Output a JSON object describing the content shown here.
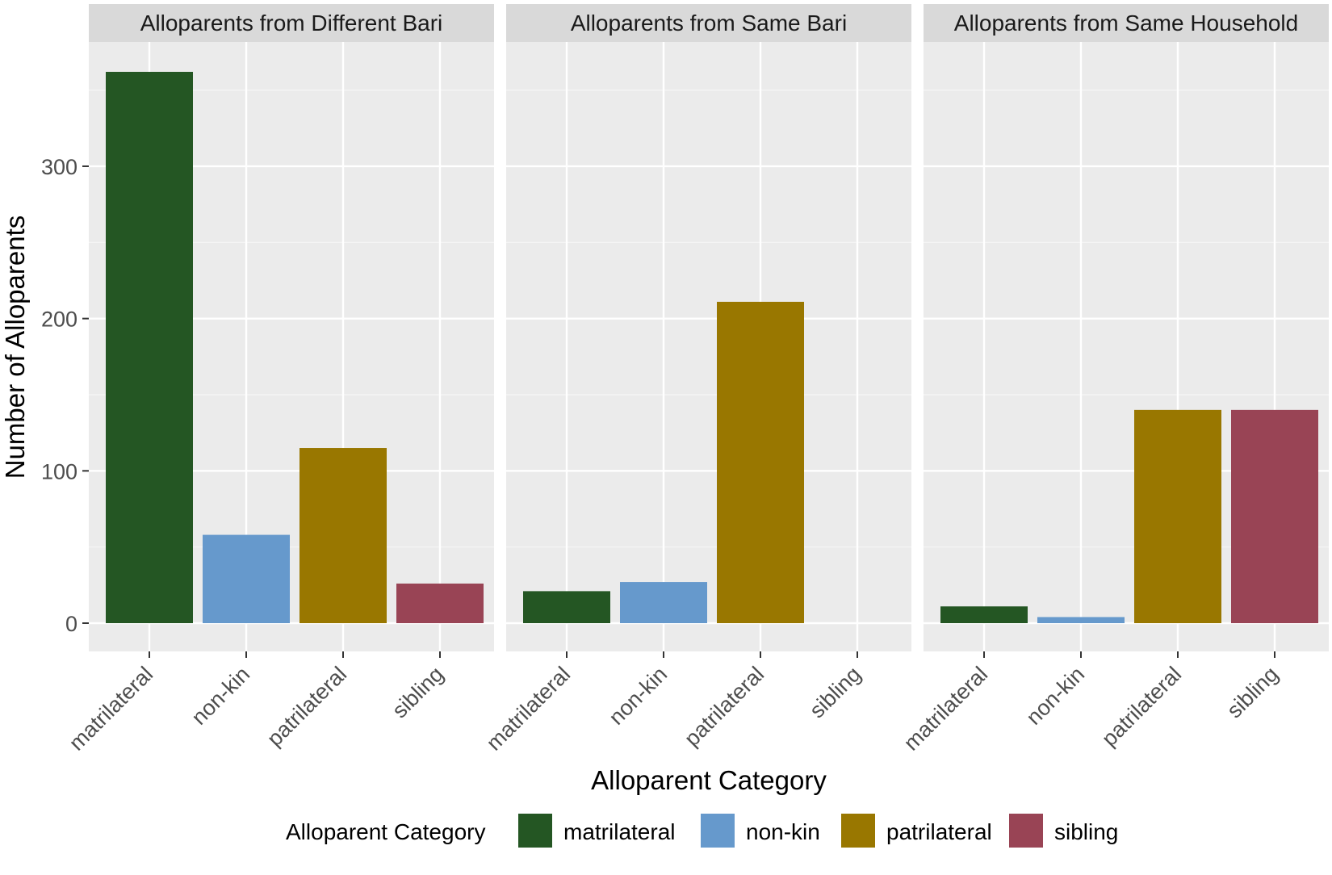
{
  "chart_data": {
    "type": "bar",
    "ylabel": "Number of Alloparents",
    "xlabel": "Alloparent Category",
    "ylim": [
      0,
      380
    ],
    "yticks": [
      0,
      100,
      200,
      300
    ],
    "categories": [
      "matrilateral",
      "non-kin",
      "patrilateral",
      "sibling"
    ],
    "colors": {
      "matrilateral": "#245623",
      "non-kin": "#6699cc",
      "patrilateral": "#997700",
      "sibling": "#994455"
    },
    "panels": [
      {
        "title": "Alloparents from Different Bari",
        "values": [
          362,
          58,
          115,
          26
        ]
      },
      {
        "title": "Alloparents from Same Bari",
        "values": [
          21,
          27,
          211,
          0
        ]
      },
      {
        "title": "Alloparents from Same Household",
        "values": [
          11,
          4,
          140,
          140
        ]
      }
    ],
    "legend": {
      "title": "Alloparent Category",
      "position": "bottom",
      "items": [
        "matrilateral",
        "non-kin",
        "patrilateral",
        "sibling"
      ]
    }
  }
}
